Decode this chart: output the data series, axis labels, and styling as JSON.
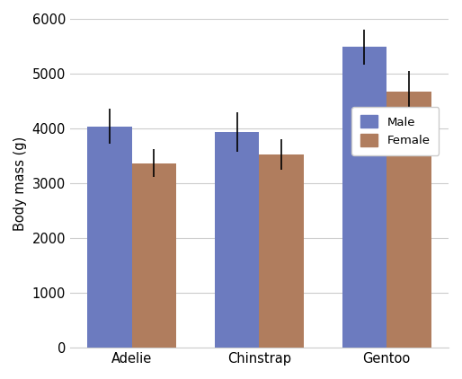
{
  "species": [
    "Adelie",
    "Chinstrap",
    "Gentoo"
  ],
  "male_means": [
    4040,
    3939,
    5485
  ],
  "female_means": [
    3369,
    3527,
    4679
  ],
  "male_errors": [
    325,
    362,
    313
  ],
  "female_errors": [
    259,
    285,
    376
  ],
  "male_color": "#6c7bbf",
  "female_color": "#b07d5e",
  "ylabel": "Body mass (g)",
  "ylim": [
    0,
    6000
  ],
  "yticks": [
    0,
    1000,
    2000,
    3000,
    4000,
    5000,
    6000
  ],
  "legend_labels": [
    "Male",
    "Female"
  ],
  "plot_bg_color": "#ffffff",
  "fig_bg_color": "#ffffff",
  "grid_color": "#cccccc",
  "bar_width": 0.35,
  "figsize": [
    5.14,
    4.22
  ],
  "dpi": 100
}
